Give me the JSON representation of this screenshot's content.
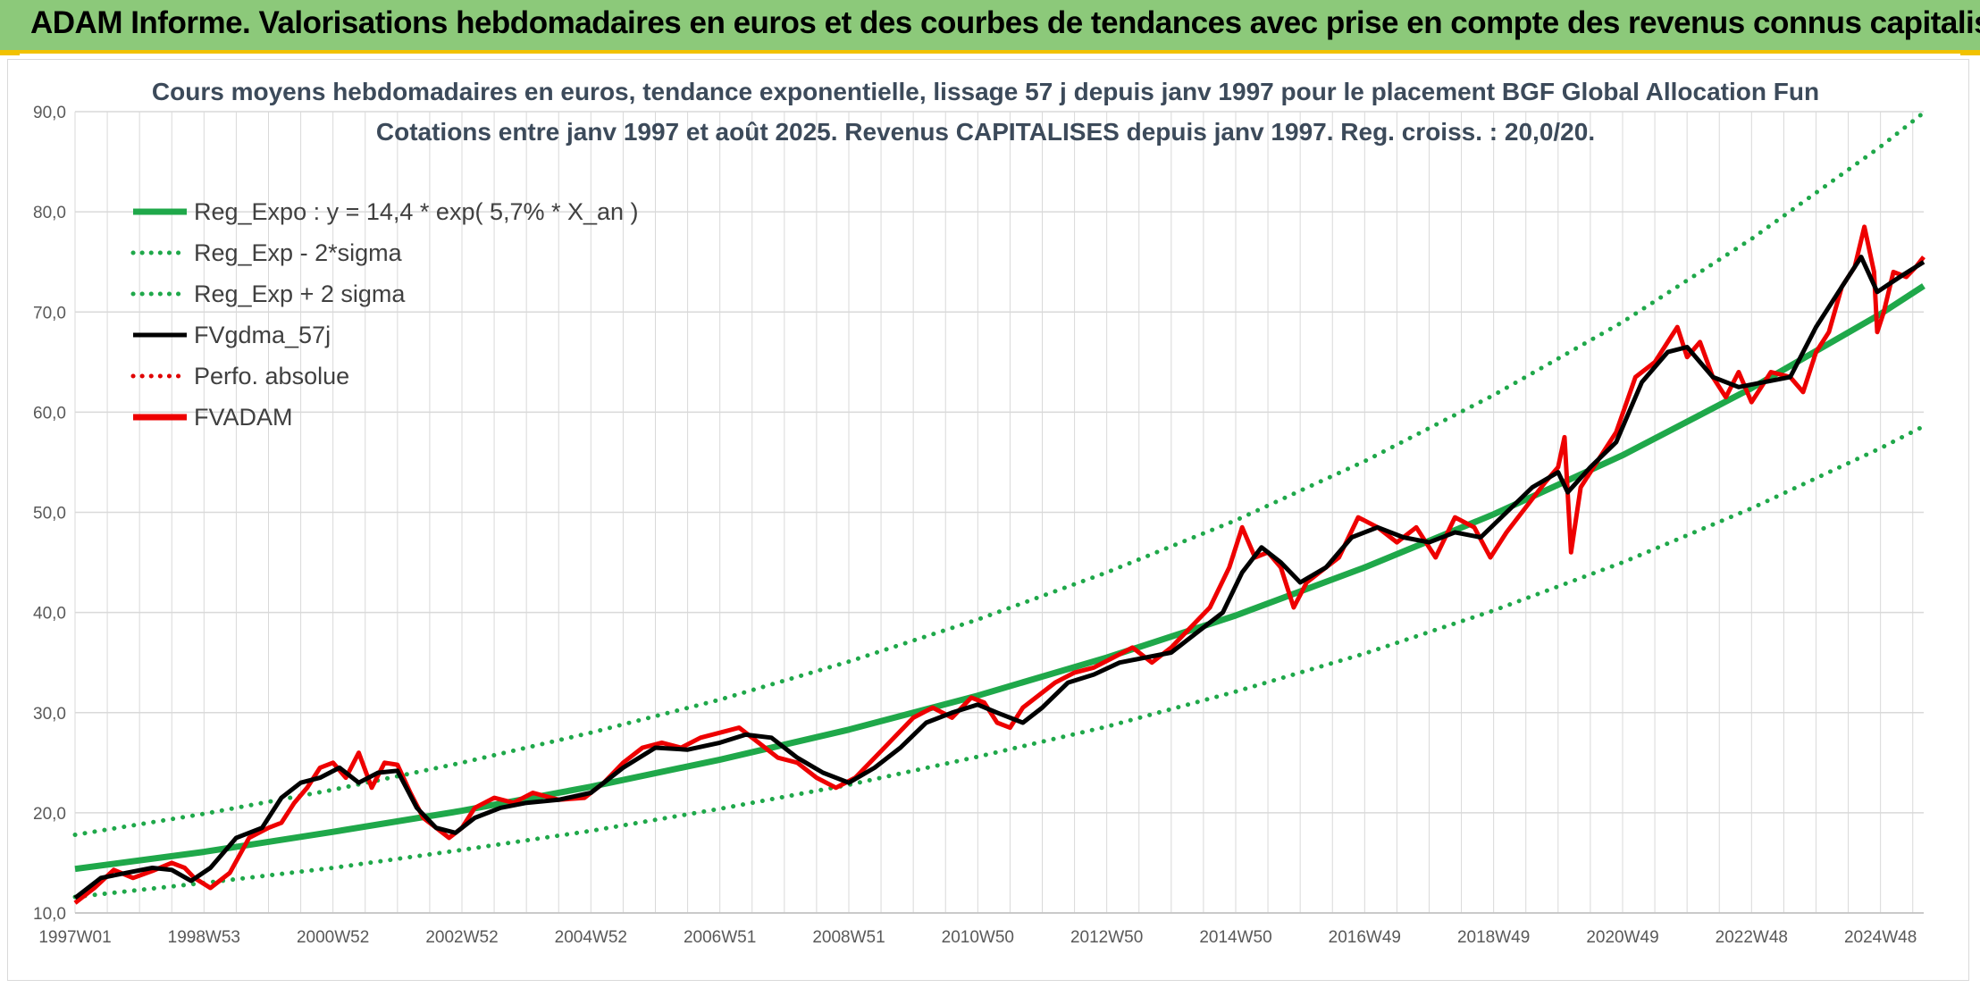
{
  "banner": {
    "title": "ADAM Informe. Valorisations hebdomadaires en euros et des courbes de tendances avec prise en compte des revenus connus capitalisés"
  },
  "colors": {
    "banner_bg": "#8cc97a",
    "banner_accent": "#f2c200",
    "trend": "#1fa84a",
    "band": "#1fa84a",
    "smoothed": "#000000",
    "perf": "#e00000",
    "price": "#ee0000",
    "grid": "#d9d9d9"
  },
  "chart_data": {
    "type": "line",
    "title": "Cours moyens hebdomadaires en euros, tendance exponentielle, lissage 57 j depuis janv 1997 pour le placement BGF Global Allocation Fun",
    "subtitle": "Cotations entre janv 1997 et août 2025. Revenus CAPITALISES depuis janv 1997. Reg. croiss. : 20,0/20.",
    "xlabel": "",
    "ylabel": "",
    "xlim": [
      1997.0,
      2025.67
    ],
    "ylim": [
      10,
      90
    ],
    "y_ticks": [
      "10,0",
      "20,0",
      "30,0",
      "40,0",
      "50,0",
      "60,0",
      "70,0",
      "80,0",
      "90,0"
    ],
    "x_ticks": [
      {
        "label": "1997W01",
        "x": 1997.0
      },
      {
        "label": "1998W53",
        "x": 1999.0
      },
      {
        "label": "2000W52",
        "x": 2001.0
      },
      {
        "label": "2002W52",
        "x": 2003.0
      },
      {
        "label": "2004W52",
        "x": 2005.0
      },
      {
        "label": "2006W51",
        "x": 2007.0
      },
      {
        "label": "2008W51",
        "x": 2009.0
      },
      {
        "label": "2010W50",
        "x": 2011.0
      },
      {
        "label": "2012W50",
        "x": 2013.0
      },
      {
        "label": "2014W50",
        "x": 2015.0
      },
      {
        "label": "2016W49",
        "x": 2017.0
      },
      {
        "label": "2018W49",
        "x": 2019.0
      },
      {
        "label": "2020W49",
        "x": 2021.0
      },
      {
        "label": "2022W48",
        "x": 2023.0
      },
      {
        "label": "2024W48",
        "x": 2025.0
      }
    ],
    "grid": true,
    "legend_position": "top-left",
    "legend": [
      {
        "label": "Reg_Expo : y = 14,4 * exp( 5,7% *  X_an )",
        "style": "solid-thick",
        "color": "#1fa84a"
      },
      {
        "label": "Reg_Exp - 2*sigma",
        "style": "dotted",
        "color": "#1fa84a"
      },
      {
        "label": "Reg_Exp + 2 sigma",
        "style": "dotted",
        "color": "#1fa84a"
      },
      {
        "label": "FVgdma_57j",
        "style": "solid",
        "color": "#000000"
      },
      {
        "label": "Perfo. absolue",
        "style": "dotted",
        "color": "#e00000"
      },
      {
        "label": "FVADAM",
        "style": "solid-thick",
        "color": "#ee0000"
      }
    ],
    "series": [
      {
        "name": "Reg_Expo : y = 14,4 * exp( 5,7% *  X_an )",
        "x": [
          1997.0,
          1999.0,
          2001.0,
          2003.0,
          2005.0,
          2007.0,
          2009.0,
          2011.0,
          2013.0,
          2015.0,
          2017.0,
          2019.0,
          2021.0,
          2023.0,
          2025.0,
          2025.67
        ],
        "y": [
          14.4,
          16.1,
          18.1,
          20.2,
          22.6,
          25.3,
          28.3,
          31.7,
          35.5,
          39.7,
          44.5,
          49.8,
          55.7,
          62.4,
          69.8,
          72.6
        ]
      },
      {
        "name": "Reg_Exp - 2*sigma",
        "x": [
          1997.0,
          1999.0,
          2001.0,
          2003.0,
          2005.0,
          2007.0,
          2009.0,
          2011.0,
          2013.0,
          2015.0,
          2017.0,
          2019.0,
          2021.0,
          2023.0,
          2025.0,
          2025.67
        ],
        "y": [
          11.6,
          13.0,
          14.5,
          16.3,
          18.2,
          20.4,
          22.8,
          25.6,
          28.6,
          32.1,
          35.9,
          40.2,
          45.0,
          50.4,
          56.4,
          58.6
        ]
      },
      {
        "name": "Reg_Exp + 2 sigma",
        "x": [
          1997.0,
          1999.0,
          2001.0,
          2003.0,
          2005.0,
          2007.0,
          2009.0,
          2011.0,
          2013.0,
          2015.0,
          2017.0,
          2019.0,
          2021.0,
          2023.0,
          2025.0,
          2025.67
        ],
        "y": [
          17.8,
          19.9,
          22.3,
          25.0,
          28.0,
          31.3,
          35.1,
          39.3,
          44.0,
          49.2,
          55.1,
          61.7,
          69.0,
          77.3,
          86.5,
          89.9
        ]
      },
      {
        "name": "FVgdma_57j",
        "x": [
          1997.0,
          1997.4,
          1997.8,
          1998.2,
          1998.5,
          1998.8,
          1999.1,
          1999.5,
          1999.9,
          2000.2,
          2000.5,
          2000.8,
          2001.1,
          2001.4,
          2001.7,
          2002.0,
          2002.3,
          2002.6,
          2002.9,
          2003.2,
          2003.6,
          2004.0,
          2004.5,
          2005.0,
          2005.5,
          2006.0,
          2006.5,
          2007.0,
          2007.4,
          2007.8,
          2008.2,
          2008.6,
          2009.0,
          2009.4,
          2009.8,
          2010.2,
          2010.6,
          2011.0,
          2011.3,
          2011.7,
          2012.0,
          2012.4,
          2012.8,
          2013.2,
          2013.6,
          2014.0,
          2014.4,
          2014.8,
          2015.1,
          2015.4,
          2015.7,
          2016.0,
          2016.4,
          2016.8,
          2017.2,
          2017.6,
          2018.0,
          2018.4,
          2018.8,
          2019.2,
          2019.6,
          2020.0,
          2020.15,
          2020.5,
          2020.9,
          2021.3,
          2021.7,
          2022.0,
          2022.4,
          2022.8,
          2023.2,
          2023.6,
          2024.0,
          2024.4,
          2024.7,
          2024.95,
          2025.3,
          2025.67
        ],
        "y": [
          11.5,
          13.5,
          14.0,
          14.5,
          14.3,
          13.2,
          14.5,
          17.5,
          18.5,
          21.5,
          23.0,
          23.5,
          24.5,
          23.0,
          24.0,
          24.2,
          20.5,
          18.5,
          18.0,
          19.5,
          20.5,
          21.0,
          21.3,
          22.0,
          24.5,
          26.5,
          26.3,
          27.0,
          27.8,
          27.5,
          25.5,
          24.0,
          23.0,
          24.5,
          26.5,
          29.0,
          30.0,
          30.8,
          30.0,
          29.0,
          30.5,
          33.0,
          33.8,
          35.0,
          35.5,
          36.0,
          38.0,
          40.0,
          44.0,
          46.5,
          45.0,
          43.0,
          44.5,
          47.5,
          48.5,
          47.5,
          47.0,
          48.0,
          47.5,
          50.0,
          52.5,
          54.0,
          52.0,
          54.5,
          57.0,
          63.0,
          66.0,
          66.5,
          63.5,
          62.5,
          63.0,
          63.5,
          68.5,
          72.5,
          75.5,
          72.0,
          73.5,
          75.0
        ]
      },
      {
        "name": "FVADAM",
        "x": [
          1997.0,
          1997.3,
          1997.6,
          1997.9,
          1998.2,
          1998.5,
          1998.7,
          1998.85,
          1999.1,
          1999.4,
          1999.7,
          2000.0,
          2000.2,
          2000.4,
          2000.6,
          2000.8,
          2001.0,
          2001.2,
          2001.4,
          2001.6,
          2001.8,
          2002.0,
          2002.2,
          2002.4,
          2002.6,
          2002.8,
          2003.0,
          2003.2,
          2003.5,
          2003.8,
          2004.1,
          2004.5,
          2004.9,
          2005.2,
          2005.5,
          2005.8,
          2006.1,
          2006.4,
          2006.7,
          2007.0,
          2007.3,
          2007.6,
          2007.9,
          2008.2,
          2008.5,
          2008.8,
          2009.1,
          2009.4,
          2009.7,
          2010.0,
          2010.3,
          2010.6,
          2010.9,
          2011.1,
          2011.3,
          2011.5,
          2011.7,
          2011.9,
          2012.2,
          2012.5,
          2012.8,
          2013.1,
          2013.4,
          2013.7,
          2014.0,
          2014.3,
          2014.6,
          2014.9,
          2015.1,
          2015.3,
          2015.5,
          2015.7,
          2015.9,
          2016.1,
          2016.3,
          2016.6,
          2016.9,
          2017.2,
          2017.5,
          2017.8,
          2018.1,
          2018.4,
          2018.7,
          2018.95,
          2019.2,
          2019.5,
          2019.8,
          2020.0,
          2020.1,
          2020.2,
          2020.35,
          2020.6,
          2020.9,
          2021.2,
          2021.5,
          2021.7,
          2021.85,
          2022.0,
          2022.2,
          2022.4,
          2022.6,
          2022.8,
          2023.0,
          2023.3,
          2023.6,
          2023.8,
          2024.0,
          2024.2,
          2024.4,
          2024.6,
          2024.75,
          2024.9,
          2024.95,
          2025.05,
          2025.2,
          2025.4,
          2025.55,
          2025.67
        ],
        "y": [
          11.0,
          12.5,
          14.3,
          13.5,
          14.2,
          15.0,
          14.5,
          13.5,
          12.5,
          14.0,
          17.5,
          18.5,
          19.0,
          21.0,
          22.5,
          24.5,
          25.0,
          23.5,
          26.0,
          22.5,
          25.0,
          24.8,
          22.0,
          19.5,
          18.5,
          17.5,
          18.5,
          20.5,
          21.5,
          21.0,
          22.0,
          21.3,
          21.5,
          23.0,
          25.0,
          26.5,
          27.0,
          26.5,
          27.5,
          28.0,
          28.5,
          27.0,
          25.5,
          25.0,
          23.5,
          22.5,
          23.5,
          25.5,
          27.5,
          29.5,
          30.5,
          29.5,
          31.5,
          31.0,
          29.0,
          28.5,
          30.5,
          31.5,
          33.0,
          34.0,
          34.5,
          35.5,
          36.5,
          35.0,
          36.5,
          38.5,
          40.5,
          44.5,
          48.5,
          45.5,
          46.0,
          44.5,
          40.5,
          43.0,
          44.0,
          45.5,
          49.5,
          48.5,
          47.0,
          48.5,
          45.5,
          49.5,
          48.5,
          45.5,
          48.0,
          50.5,
          53.0,
          54.5,
          57.5,
          46.0,
          52.5,
          55.0,
          58.0,
          63.5,
          65.0,
          67.0,
          68.5,
          65.5,
          67.0,
          63.5,
          61.5,
          64.0,
          61.0,
          64.0,
          63.5,
          62.0,
          66.0,
          68.0,
          72.5,
          74.5,
          78.5,
          74.0,
          68.0,
          70.0,
          74.0,
          73.5,
          74.5,
          75.5
        ]
      }
    ]
  }
}
